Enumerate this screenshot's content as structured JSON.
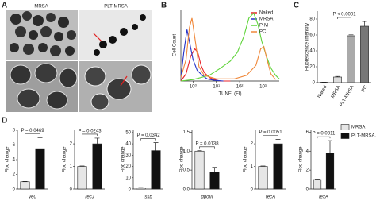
{
  "panels": {
    "a": "A",
    "b": "B",
    "c": "C",
    "d": "D"
  },
  "images": {
    "left": "MRSA",
    "right": "PLT-MRSA"
  },
  "d_legend": [
    {
      "name": "MRSA",
      "color": "#e6e6e6"
    },
    {
      "name": "PLT-MRSA.",
      "color": "#111111"
    }
  ],
  "chart_data": [
    {
      "type": "line",
      "ylabel": "Cell Count",
      "xlabel": "TUNEL(FI)",
      "xscale": "log",
      "xlim": [
        0.3,
        5000
      ],
      "ylim": [
        0,
        100
      ],
      "xticks": [
        {
          "value": 1,
          "label": "10⁰"
        },
        {
          "value": 10,
          "label": "10¹"
        },
        {
          "value": 100,
          "label": "10²"
        },
        {
          "value": 1000,
          "label": "10³"
        }
      ],
      "legend": "upper right",
      "series": [
        {
          "name": "Naked",
          "color": "#e8232a",
          "x": [
            0.3,
            0.5,
            0.8,
            1.2,
            1.6,
            2.2,
            3,
            5,
            8,
            15,
            40
          ],
          "values": [
            0,
            10,
            35,
            45,
            40,
            22,
            12,
            5,
            2,
            0,
            0
          ]
        },
        {
          "name": "MRSA",
          "color": "#2431c8",
          "x": [
            0.3,
            0.4,
            0.55,
            0.7,
            1,
            1.5,
            2.5,
            4,
            8,
            20
          ],
          "values": [
            5,
            40,
            72,
            55,
            30,
            15,
            8,
            3,
            1,
            0
          ]
        },
        {
          "name": "P-M",
          "color": "#5fd43a",
          "x": [
            0.3,
            1,
            5,
            15,
            40,
            80,
            150,
            250,
            400,
            600,
            900,
            1400,
            2200,
            3500,
            5000
          ],
          "values": [
            0,
            2,
            8,
            18,
            28,
            40,
            62,
            88,
            95,
            80,
            55,
            35,
            18,
            8,
            3
          ]
        },
        {
          "name": "PC",
          "color": "#f0883a",
          "x": [
            0.3,
            0.5,
            0.7,
            0.9,
            1.2,
            1.8,
            3,
            10,
            60,
            200,
            500,
            800,
            1100,
            1500,
            2200,
            3500
          ],
          "values": [
            5,
            30,
            75,
            88,
            60,
            20,
            8,
            3,
            3,
            8,
            22,
            45,
            48,
            30,
            10,
            2
          ]
        }
      ]
    },
    {
      "type": "bar",
      "ylabel": "Fluorescence Intensity",
      "ylim": [
        0,
        90
      ],
      "yticks": [
        0,
        20,
        40,
        60,
        80
      ],
      "categories": [
        "Naked",
        "MRSA",
        "PLT-MRSA",
        "PC"
      ],
      "colors": [
        "#ffffff",
        "#dddddd",
        "#aaaaaa",
        "#777777"
      ],
      "values": [
        0.5,
        7,
        59,
        71
      ],
      "errors": [
        0.2,
        0.8,
        1.2,
        6
      ],
      "rotate_labels": true,
      "annotation": {
        "text": "P < 0.0001",
        "from": 1,
        "to": 2
      }
    },
    {
      "type": "bar",
      "ylabel": "Flod change",
      "xlabel": "ve0",
      "ylim": [
        0,
        8
      ],
      "yticks": [
        0,
        2,
        4,
        6,
        8
      ],
      "categories": [
        null,
        null
      ],
      "colors": [
        "#e6e6e6",
        "#111111"
      ],
      "values": [
        1,
        5.5
      ],
      "errors": [
        0.05,
        1.5
      ],
      "annotation": {
        "text": "P = 0.0469",
        "from": 0,
        "to": 1
      }
    },
    {
      "type": "bar",
      "ylabel": "Flod change",
      "xlabel": "recJ",
      "ylim": [
        0,
        2.6
      ],
      "yticks": [
        0,
        1,
        2
      ],
      "categories": [
        null,
        null
      ],
      "colors": [
        "#e6e6e6",
        "#111111"
      ],
      "values": [
        1,
        2.0
      ],
      "errors": [
        0.02,
        0.25
      ],
      "annotation": {
        "text": "P = 0.0243",
        "from": 0,
        "to": 1
      }
    },
    {
      "type": "bar",
      "ylabel": "Flod change",
      "xlabel": "ssb",
      "ylim": [
        0,
        52
      ],
      "yticks": [
        0,
        10,
        20,
        30,
        40,
        50
      ],
      "categories": [
        null,
        null
      ],
      "colors": [
        "#e6e6e6",
        "#111111"
      ],
      "values": [
        1,
        34
      ],
      "errors": [
        0.3,
        7
      ],
      "annotation": {
        "text": "P = 0.0342",
        "from": 0,
        "to": 1
      }
    },
    {
      "type": "bar",
      "ylabel": "Flod change",
      "xlabel": "dpoIII",
      "ylim": [
        0,
        1.55
      ],
      "yticks": [
        {
          "value": 0,
          "label": "0.0"
        },
        {
          "value": 0.5,
          "label": "0.5"
        },
        {
          "value": 1,
          "label": "1.0"
        },
        {
          "value": 1.5,
          "label": "1.5"
        }
      ],
      "categories": [
        null,
        null
      ],
      "colors": [
        "#e6e6e6",
        "#111111"
      ],
      "values": [
        1,
        0.45
      ],
      "errors": [
        0.01,
        0.12
      ],
      "annotation": {
        "text": "P = 0.0138",
        "from": 0,
        "to": 1
      }
    },
    {
      "type": "bar",
      "ylabel": "Flod change",
      "xlabel": "recA",
      "ylim": [
        0,
        2.6
      ],
      "yticks": [
        0,
        1,
        2
      ],
      "categories": [
        null,
        null
      ],
      "colors": [
        "#e6e6e6",
        "#111111"
      ],
      "values": [
        1,
        2.0
      ],
      "errors": [
        0.02,
        0.2
      ],
      "annotation": {
        "text": "P = 0.0051",
        "from": 0,
        "to": 1
      }
    },
    {
      "type": "bar",
      "ylabel": "Flod change",
      "xlabel": "lexA",
      "ylim": [
        0,
        6.2
      ],
      "yticks": [
        0,
        2,
        4,
        6
      ],
      "categories": [
        null,
        null
      ],
      "colors": [
        "#e6e6e6",
        "#111111"
      ],
      "values": [
        1,
        3.8
      ],
      "errors": [
        0.05,
        1.3
      ],
      "annotation": {
        "text": "P = 0.0311",
        "from": 0,
        "to": 1
      }
    }
  ]
}
